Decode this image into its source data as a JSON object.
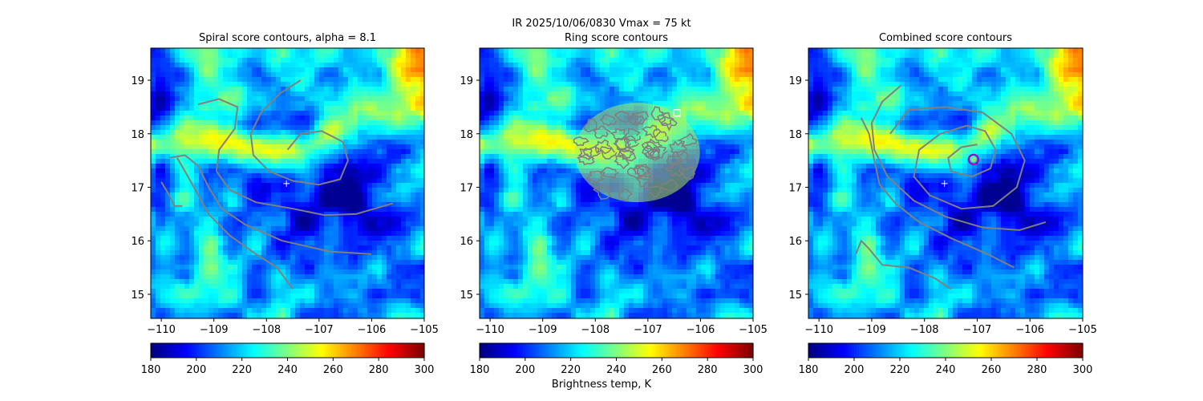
{
  "figure": {
    "suptitle": "IR  2025/10/06/0830    Vmax = 75 kt"
  },
  "colorbar": {
    "label": "Brightness temp, K",
    "ticks": [
      "180",
      "200",
      "220",
      "240",
      "260",
      "280",
      "300"
    ],
    "range": [
      180,
      300
    ],
    "colormap": "jet_r"
  },
  "chart_data": [
    {
      "type": "heatmap",
      "title": "Spiral score contours, alpha =  8.1",
      "x_ticks": [
        "−110",
        "−109",
        "−108",
        "−107",
        "−106",
        "−105"
      ],
      "y_ticks": [
        "15",
        "16",
        "17",
        "18",
        "19"
      ],
      "xlim": [
        -110.2,
        -105.0
      ],
      "ylim": [
        14.55,
        19.6
      ],
      "colorbar_ticks": [
        "180",
        "200",
        "220",
        "240",
        "260",
        "280",
        "300"
      ],
      "markers": [
        {
          "kind": "plus",
          "x": -107.62,
          "y": 17.07,
          "color": "#ffffff"
        }
      ]
    },
    {
      "type": "heatmap",
      "title": "Ring score contours",
      "x_ticks": [
        "−110",
        "−109",
        "−108",
        "−107",
        "−106",
        "−105"
      ],
      "y_ticks": [
        "15",
        "16",
        "17",
        "18",
        "19"
      ],
      "xlim": [
        -110.2,
        -105.0
      ],
      "ylim": [
        14.55,
        19.6
      ],
      "colorbar_ticks": [
        "180",
        "200",
        "220",
        "240",
        "260",
        "280",
        "300"
      ],
      "markers": [
        {
          "kind": "square",
          "x": -106.45,
          "y": 18.39,
          "color": "#ffffff"
        }
      ]
    },
    {
      "type": "heatmap",
      "title": "Combined score contours",
      "x_ticks": [
        "−110",
        "−109",
        "−108",
        "−107",
        "−106",
        "−105"
      ],
      "y_ticks": [
        "15",
        "16",
        "17",
        "18",
        "19"
      ],
      "xlim": [
        -110.2,
        -105.0
      ],
      "ylim": [
        14.55,
        19.6
      ],
      "colorbar_ticks": [
        "180",
        "200",
        "220",
        "240",
        "260",
        "280",
        "300"
      ],
      "markers": [
        {
          "kind": "plus",
          "x": -107.62,
          "y": 17.07,
          "color": "#ffffff"
        },
        {
          "kind": "circle",
          "x": -107.07,
          "y": 17.52,
          "color": "#b000b0"
        }
      ]
    }
  ]
}
